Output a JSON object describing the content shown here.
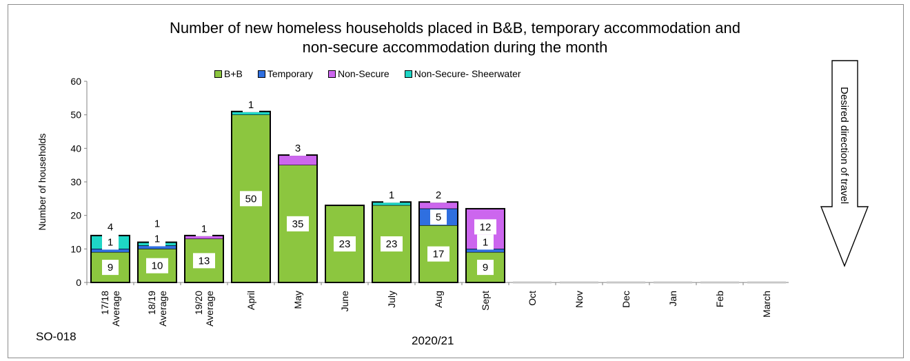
{
  "chart_code": "SO-018",
  "period_label": "2020/21",
  "direction_label": "Desired direction of travel",
  "chart_data": {
    "type": "bar",
    "stacked": true,
    "title": "Number of new homeless households placed in B&B, temporary accommodation and",
    "subtitle": "non-secure accommodation during the month",
    "xlabel": "2020/21",
    "ylabel": "Number of households",
    "ylim": [
      0,
      60
    ],
    "yticks": [
      0,
      10,
      20,
      30,
      40,
      50,
      60
    ],
    "legend_position": "top",
    "categories": [
      [
        "17/18",
        "Average"
      ],
      [
        "18/19",
        "Average"
      ],
      [
        "19/20",
        "Average"
      ],
      [
        "April"
      ],
      [
        "May"
      ],
      [
        "June"
      ],
      [
        "July"
      ],
      [
        "Aug"
      ],
      [
        "Sept"
      ],
      [
        "Oct"
      ],
      [
        "Nov"
      ],
      [
        "Dec"
      ],
      [
        "Jan"
      ],
      [
        "Feb"
      ],
      [
        "March"
      ]
    ],
    "series": [
      {
        "name": "B+B",
        "color": "#8cc63f",
        "values": [
          9,
          10,
          13,
          50,
          35,
          23,
          23,
          17,
          9,
          0,
          0,
          0,
          0,
          0,
          0
        ],
        "labels": [
          "9",
          "10",
          "13",
          "50",
          "35",
          "23",
          "23",
          "17",
          "9",
          null,
          null,
          null,
          null,
          null,
          null
        ]
      },
      {
        "name": "Temporary",
        "color": "#2f6fe0",
        "values": [
          1,
          1,
          0,
          0,
          0,
          0,
          0,
          5,
          1,
          0,
          0,
          0,
          0,
          0,
          0
        ],
        "labels": [
          "1",
          "1",
          null,
          null,
          null,
          null,
          null,
          "5",
          "1",
          null,
          null,
          null,
          null,
          null,
          null
        ]
      },
      {
        "name": "Non-Secure",
        "color": "#cc66ee",
        "values": [
          0,
          0,
          1,
          0,
          3,
          0,
          0,
          2,
          12,
          0,
          0,
          0,
          0,
          0,
          0
        ],
        "labels": [
          null,
          null,
          "1",
          null,
          "3",
          null,
          null,
          "2",
          "12",
          null,
          null,
          null,
          null,
          null,
          null
        ]
      },
      {
        "name": "Non-Secure- Sheerwater",
        "color": "#1ed6c6",
        "values": [
          4,
          1,
          0,
          1,
          0,
          0,
          1,
          0,
          0,
          0,
          0,
          0,
          0,
          0,
          0
        ],
        "labels": [
          "4",
          "1",
          null,
          "1",
          null,
          null,
          "1",
          null,
          null,
          null,
          null,
          null,
          null,
          null,
          null
        ]
      }
    ]
  }
}
